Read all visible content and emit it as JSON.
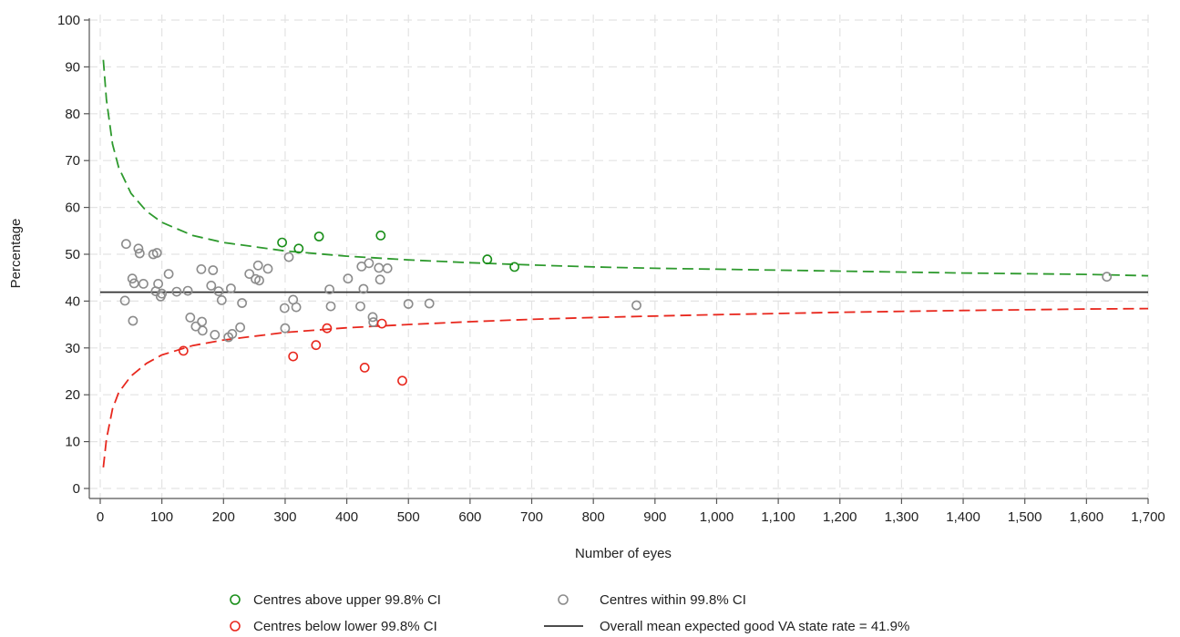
{
  "chart_data": {
    "type": "scatter",
    "title": "",
    "xlabel": "Number of eyes",
    "ylabel": "Percentage",
    "xlim": [
      0,
      1700
    ],
    "ylim": [
      0,
      100
    ],
    "x_ticks": [
      0,
      100,
      200,
      300,
      400,
      500,
      600,
      700,
      800,
      900,
      1000,
      1100,
      1200,
      1300,
      1400,
      1500,
      1600,
      1700
    ],
    "x_tick_labels": [
      "0",
      "100",
      "200",
      "300",
      "400",
      "500",
      "600",
      "700",
      "800",
      "900",
      "1,000",
      "1,100",
      "1,200",
      "1,300",
      "1,400",
      "1,500",
      "1,600",
      "1,700"
    ],
    "y_ticks": [
      0,
      10,
      20,
      30,
      40,
      50,
      60,
      70,
      80,
      90,
      100
    ],
    "y_tick_labels": [
      "0",
      "10",
      "20",
      "30",
      "40",
      "50",
      "60",
      "70",
      "80",
      "90",
      "100"
    ],
    "grid": true,
    "legend_position": "bottom",
    "mean_line": {
      "label": "Overall mean expected good VA state rate = 41.9%",
      "value": 41.9,
      "color": "#333333"
    },
    "confidence_level": 0.998,
    "series": [
      {
        "name": "Centres above upper 99.8% CI",
        "color": "#1a8f1a",
        "points": [
          [
            295,
            52.5
          ],
          [
            322,
            51.2
          ],
          [
            355,
            53.8
          ],
          [
            455,
            54.0
          ],
          [
            628,
            48.9
          ],
          [
            672,
            47.3
          ]
        ]
      },
      {
        "name": "Centres within 99.8% CI",
        "color": "#8c8c8c",
        "points": [
          [
            40,
            40.1
          ],
          [
            42,
            52.2
          ],
          [
            52,
            44.8
          ],
          [
            55,
            43.8
          ],
          [
            53,
            35.8
          ],
          [
            62,
            51.2
          ],
          [
            64,
            50.2
          ],
          [
            70,
            43.7
          ],
          [
            86,
            50.0
          ],
          [
            92,
            50.3
          ],
          [
            90,
            42.1
          ],
          [
            94,
            43.7
          ],
          [
            98,
            41.0
          ],
          [
            100,
            41.6
          ],
          [
            111,
            45.8
          ],
          [
            124,
            42.0
          ],
          [
            142,
            42.2
          ],
          [
            146,
            36.5
          ],
          [
            155,
            34.6
          ],
          [
            164,
            46.8
          ],
          [
            165,
            35.6
          ],
          [
            166,
            33.7
          ],
          [
            180,
            43.3
          ],
          [
            183,
            46.6
          ],
          [
            186,
            32.8
          ],
          [
            192,
            42.1
          ],
          [
            197,
            40.2
          ],
          [
            208,
            32.3
          ],
          [
            212,
            42.7
          ],
          [
            214,
            33.0
          ],
          [
            227,
            34.4
          ],
          [
            230,
            39.6
          ],
          [
            242,
            45.8
          ],
          [
            252,
            44.7
          ],
          [
            256,
            47.6
          ],
          [
            258,
            44.4
          ],
          [
            272,
            46.9
          ],
          [
            299,
            38.5
          ],
          [
            300,
            34.2
          ],
          [
            306,
            49.4
          ],
          [
            313,
            40.3
          ],
          [
            318,
            38.7
          ],
          [
            372,
            42.5
          ],
          [
            374,
            38.9
          ],
          [
            402,
            44.8
          ],
          [
            422,
            38.9
          ],
          [
            424,
            47.4
          ],
          [
            427,
            42.6
          ],
          [
            436,
            48.1
          ],
          [
            442,
            36.6
          ],
          [
            443,
            35.5
          ],
          [
            452,
            47.1
          ],
          [
            454,
            44.6
          ],
          [
            466,
            47.0
          ],
          [
            500,
            39.4
          ],
          [
            534,
            39.5
          ],
          [
            870,
            39.1
          ],
          [
            1633,
            45.2
          ]
        ]
      },
      {
        "name": "Centres below lower 99.8% CI",
        "color": "#e8281e",
        "points": [
          [
            135,
            29.4
          ],
          [
            313,
            28.2
          ],
          [
            350,
            30.6
          ],
          [
            368,
            34.2
          ],
          [
            429,
            25.8
          ],
          [
            457,
            35.2
          ],
          [
            490,
            23.0
          ]
        ]
      }
    ],
    "upper_limit_curve": {
      "color": "#2e9a2e",
      "points": [
        [
          5,
          91.5
        ],
        [
          10,
          83.0
        ],
        [
          20,
          73.5
        ],
        [
          30,
          68.5
        ],
        [
          50,
          63.0
        ],
        [
          75,
          59.2
        ],
        [
          100,
          56.8
        ],
        [
          150,
          54.0
        ],
        [
          200,
          52.5
        ],
        [
          300,
          50.7
        ],
        [
          400,
          49.6
        ],
        [
          500,
          48.8
        ],
        [
          600,
          48.2
        ],
        [
          700,
          47.7
        ],
        [
          800,
          47.3
        ],
        [
          900,
          47.0
        ],
        [
          1000,
          46.8
        ],
        [
          1200,
          46.4
        ],
        [
          1400,
          46.0
        ],
        [
          1600,
          45.7
        ],
        [
          1700,
          45.4
        ]
      ]
    },
    "lower_limit_curve": {
      "color": "#e8281e",
      "points": [
        [
          5,
          4.5
        ],
        [
          10,
          10.5
        ],
        [
          20,
          17.0
        ],
        [
          30,
          20.5
        ],
        [
          50,
          24.0
        ],
        [
          75,
          26.7
        ],
        [
          100,
          28.5
        ],
        [
          150,
          30.5
        ],
        [
          200,
          31.7
        ],
        [
          300,
          33.3
        ],
        [
          400,
          34.3
        ],
        [
          500,
          35.0
        ],
        [
          600,
          35.6
        ],
        [
          700,
          36.1
        ],
        [
          800,
          36.5
        ],
        [
          900,
          36.8
        ],
        [
          1000,
          37.1
        ],
        [
          1200,
          37.6
        ],
        [
          1400,
          38.0
        ],
        [
          1600,
          38.3
        ],
        [
          1700,
          38.4
        ]
      ]
    }
  },
  "legend": {
    "items": [
      {
        "label": "Centres above upper 99.8% CI",
        "marker": "circle",
        "color": "#1a8f1a"
      },
      {
        "label": "Centres within 99.8% CI",
        "marker": "circle",
        "color": "#8c8c8c"
      },
      {
        "label": "Centres below lower 99.8% CI",
        "marker": "circle",
        "color": "#e8281e"
      },
      {
        "label": "Overall mean expected good VA state rate = 41.9%",
        "marker": "line",
        "color": "#333333"
      }
    ]
  }
}
